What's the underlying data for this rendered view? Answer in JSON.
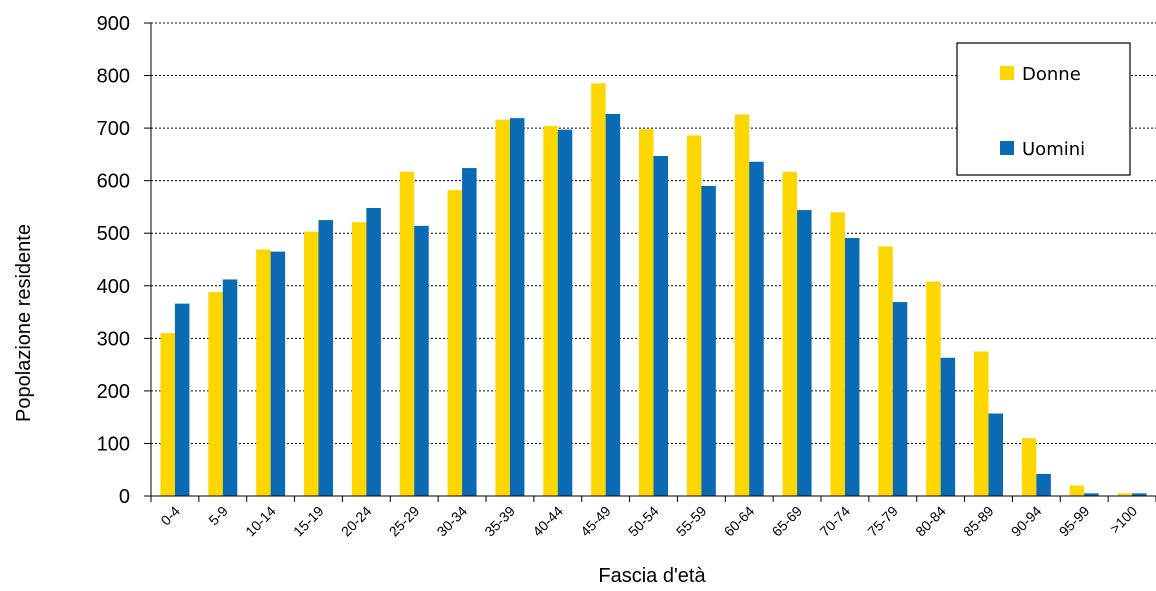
{
  "chart_data": {
    "type": "bar",
    "xlabel": "Fascia d'età",
    "ylabel": "Popolazione  residente",
    "ylim": [
      0,
      900
    ],
    "yticks": [
      0,
      100,
      200,
      300,
      400,
      500,
      600,
      700,
      800,
      900
    ],
    "grid": true,
    "legend_position": "top-right",
    "categories": [
      "0-4",
      "5-9",
      "10-14",
      "15-19",
      "20-24",
      "25-29",
      "30-34",
      "35-39",
      "40-44",
      "45-49",
      "50-54",
      "55-59",
      "60-64",
      "65-69",
      "70-74",
      "75-79",
      "80-84",
      "85-89",
      "90-94",
      "95-99",
      ">100"
    ],
    "series": [
      {
        "name": "Donne",
        "color": "#FFD700",
        "values": [
          310,
          388,
          469,
          503,
          521,
          617,
          582,
          716,
          704,
          785,
          698,
          686,
          726,
          617,
          540,
          475,
          408,
          275,
          110,
          20,
          5
        ]
      },
      {
        "name": "Uomini",
        "color": "#0A6AB4",
        "values": [
          366,
          412,
          465,
          525,
          548,
          514,
          624,
          719,
          697,
          727,
          647,
          590,
          636,
          544,
          491,
          369,
          263,
          157,
          42,
          5,
          5
        ]
      }
    ]
  }
}
